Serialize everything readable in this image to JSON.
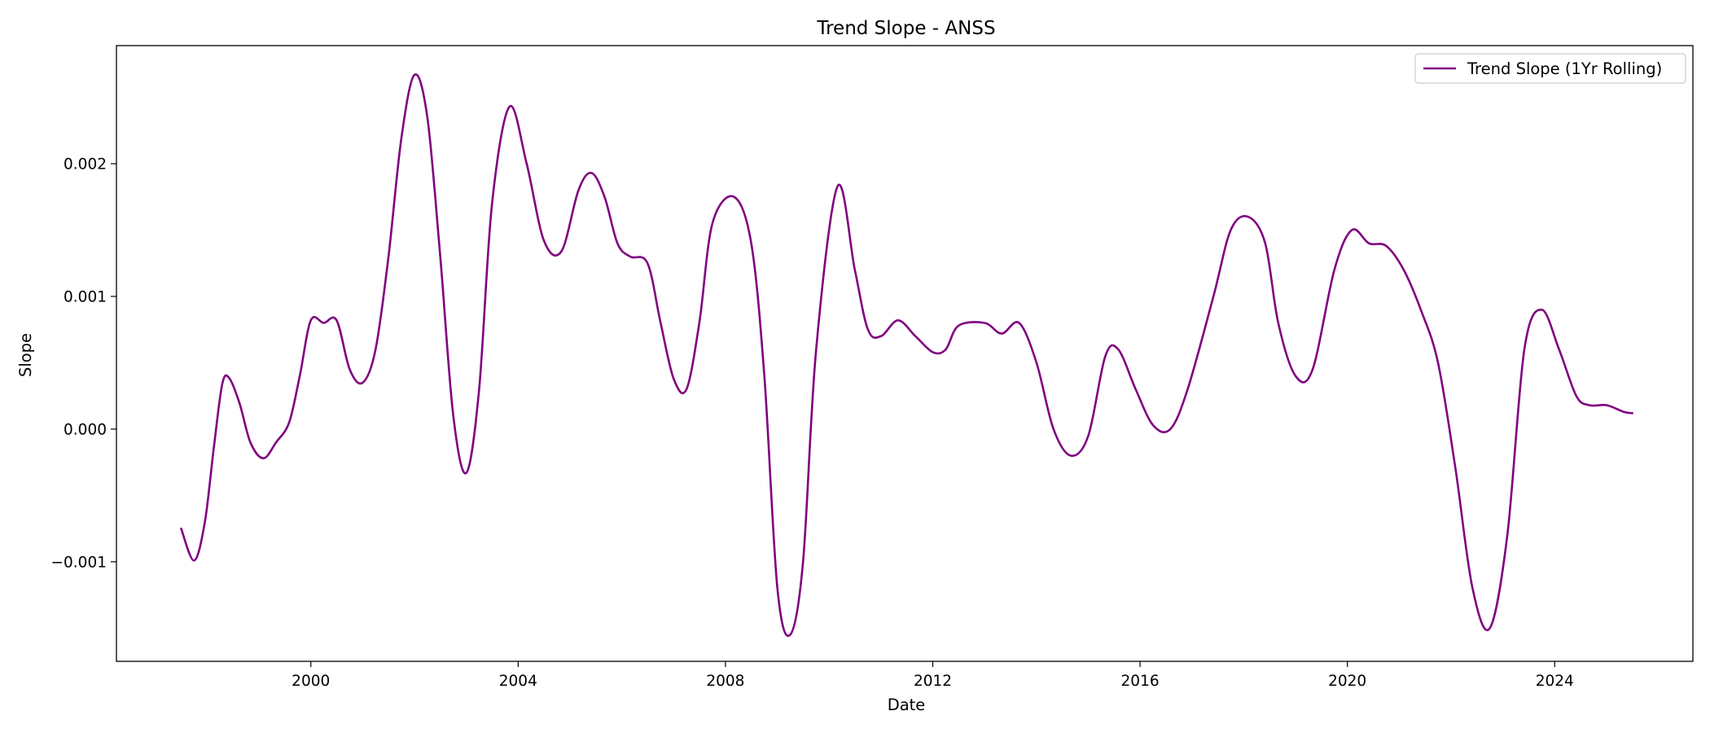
{
  "chart_data": {
    "type": "line",
    "title": "Trend Slope - ANSS",
    "xlabel": "Date",
    "ylabel": "Slope",
    "xlim": [
      "1996-04-01",
      "2026-09-01"
    ],
    "ylim": [
      -0.00175,
      0.00289
    ],
    "x_ticks": [
      {
        "date": "2000-01-01",
        "label": "2000"
      },
      {
        "date": "2004-01-01",
        "label": "2004"
      },
      {
        "date": "2008-01-01",
        "label": "2008"
      },
      {
        "date": "2012-01-01",
        "label": "2012"
      },
      {
        "date": "2016-01-01",
        "label": "2016"
      },
      {
        "date": "2020-01-01",
        "label": "2020"
      },
      {
        "date": "2024-01-01",
        "label": "2024"
      }
    ],
    "y_ticks": [
      {
        "value": -0.001,
        "label": "−0.001"
      },
      {
        "value": 0.0,
        "label": "0.000"
      },
      {
        "value": 0.001,
        "label": "0.001"
      },
      {
        "value": 0.002,
        "label": "0.002"
      }
    ],
    "grid": false,
    "legend_position": "top-right",
    "colors": {
      "line": "#800080",
      "axes": "#000000",
      "background": "#ffffff"
    },
    "series": [
      {
        "name": "Trend Slope (1Yr Rolling)",
        "points": [
          [
            "1997-07-01",
            -0.00075
          ],
          [
            "1997-10-01",
            -0.00099
          ],
          [
            "1997-12-15",
            -0.0007
          ],
          [
            "1998-02-15",
            -0.00015
          ],
          [
            "1998-04-15",
            0.00033
          ],
          [
            "1998-06-01",
            0.00039
          ],
          [
            "1998-08-15",
            0.0002
          ],
          [
            "1998-11-01",
            -0.0001
          ],
          [
            "1999-02-01",
            -0.00022
          ],
          [
            "1999-05-01",
            -0.0001
          ],
          [
            "1999-08-01",
            5e-05
          ],
          [
            "1999-10-15",
            0.0004
          ],
          [
            "2000-01-01",
            0.00082
          ],
          [
            "2000-04-01",
            0.0008
          ],
          [
            "2000-07-01",
            0.00082
          ],
          [
            "2000-10-01",
            0.00045
          ],
          [
            "2001-01-01",
            0.00035
          ],
          [
            "2001-04-01",
            0.0006
          ],
          [
            "2001-07-01",
            0.0013
          ],
          [
            "2001-10-01",
            0.0022
          ],
          [
            "2002-01-01",
            0.00267
          ],
          [
            "2002-04-01",
            0.00235
          ],
          [
            "2002-07-01",
            0.0013
          ],
          [
            "2002-10-01",
            0.0001
          ],
          [
            "2003-01-01",
            -0.00033
          ],
          [
            "2003-04-01",
            0.0003
          ],
          [
            "2003-07-01",
            0.0017
          ],
          [
            "2003-11-01",
            0.00243
          ],
          [
            "2004-03-01",
            0.002
          ],
          [
            "2004-07-01",
            0.00142
          ],
          [
            "2004-11-01",
            0.00134
          ],
          [
            "2005-03-01",
            0.0018
          ],
          [
            "2005-06-01",
            0.00193
          ],
          [
            "2005-09-01",
            0.00175
          ],
          [
            "2005-12-01",
            0.0014
          ],
          [
            "2006-03-01",
            0.0013
          ],
          [
            "2006-07-01",
            0.00125
          ],
          [
            "2006-10-01",
            0.0008
          ],
          [
            "2007-01-01",
            0.00038
          ],
          [
            "2007-04-01",
            0.0003
          ],
          [
            "2007-07-01",
            0.0008
          ],
          [
            "2007-10-01",
            0.00155
          ],
          [
            "2008-03-01",
            0.00175
          ],
          [
            "2008-07-01",
            0.0014
          ],
          [
            "2008-10-01",
            0.0004
          ],
          [
            "2009-01-01",
            -0.0012
          ],
          [
            "2009-04-01",
            -0.00155
          ],
          [
            "2009-07-01",
            -0.001
          ],
          [
            "2009-10-01",
            0.0006
          ],
          [
            "2010-03-01",
            0.00183
          ],
          [
            "2010-07-01",
            0.0012
          ],
          [
            "2010-10-01",
            0.00075
          ],
          [
            "2011-01-01",
            0.0007
          ],
          [
            "2011-05-01",
            0.00082
          ],
          [
            "2011-09-01",
            0.0007
          ],
          [
            "2012-01-01",
            0.00058
          ],
          [
            "2012-04-01",
            0.0006
          ],
          [
            "2012-07-01",
            0.00078
          ],
          [
            "2013-01-01",
            0.0008
          ],
          [
            "2013-05-01",
            0.00072
          ],
          [
            "2013-09-01",
            0.0008
          ],
          [
            "2014-01-01",
            0.0005
          ],
          [
            "2014-05-01",
            0.0
          ],
          [
            "2014-09-01",
            -0.0002
          ],
          [
            "2015-01-01",
            -5e-05
          ],
          [
            "2015-05-01",
            0.00055
          ],
          [
            "2015-08-01",
            0.0006
          ],
          [
            "2015-12-01",
            0.0003
          ],
          [
            "2016-04-01",
            3e-05
          ],
          [
            "2016-08-01",
            0.0
          ],
          [
            "2016-12-01",
            0.0003
          ],
          [
            "2017-06-01",
            0.001
          ],
          [
            "2017-10-01",
            0.0015
          ],
          [
            "2018-02-01",
            0.0016
          ],
          [
            "2018-06-01",
            0.0014
          ],
          [
            "2018-09-01",
            0.0008
          ],
          [
            "2019-01-01",
            0.0004
          ],
          [
            "2019-05-01",
            0.00045
          ],
          [
            "2019-10-01",
            0.0012
          ],
          [
            "2020-02-01",
            0.0015
          ],
          [
            "2020-06-01",
            0.0014
          ],
          [
            "2020-10-01",
            0.00138
          ],
          [
            "2021-02-01",
            0.0012
          ],
          [
            "2021-06-01",
            0.0009
          ],
          [
            "2021-10-01",
            0.0005
          ],
          [
            "2022-02-01",
            -0.0003
          ],
          [
            "2022-06-01",
            -0.0012
          ],
          [
            "2022-10-01",
            -0.0015
          ],
          [
            "2023-02-01",
            -0.0008
          ],
          [
            "2023-06-01",
            0.0006
          ],
          [
            "2023-10-01",
            0.0009
          ],
          [
            "2024-02-01",
            0.0006
          ],
          [
            "2024-06-01",
            0.00025
          ],
          [
            "2024-09-01",
            0.00018
          ],
          [
            "2025-01-01",
            0.00018
          ],
          [
            "2025-05-01",
            0.00013
          ],
          [
            "2025-07-01",
            0.00012
          ]
        ]
      }
    ]
  }
}
